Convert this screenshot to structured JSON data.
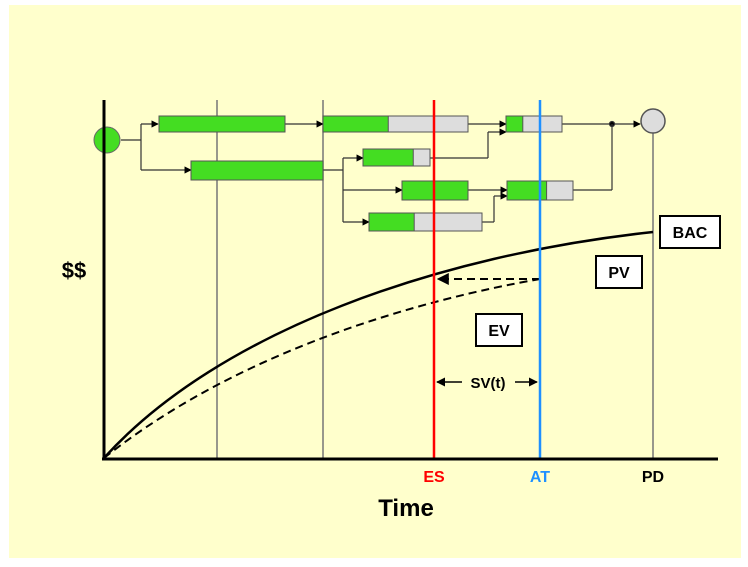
{
  "axes": {
    "y_label": "$$",
    "x_label": "Time"
  },
  "markers": {
    "es": {
      "label": "ES",
      "color": "#ff0000"
    },
    "at": {
      "label": "AT",
      "color": "#1e90ff"
    },
    "pd": {
      "label": "PD",
      "color": "#000000"
    }
  },
  "curves": {
    "bac_label": "BAC",
    "pv_label": "PV",
    "ev_label": "EV",
    "sv_label": "SV(t)"
  },
  "colors": {
    "background": "#ffffcc",
    "task_done": "#44dd22",
    "task_remaining": "#dddddd",
    "start_node": "#44dd22",
    "end_node": "#dddddd"
  },
  "tasks": [
    {
      "id": "t1",
      "progress": 1.0
    },
    {
      "id": "t2",
      "progress": 0.45
    },
    {
      "id": "t3",
      "progress": 0.3
    },
    {
      "id": "t4",
      "progress": 1.0
    },
    {
      "id": "t5",
      "progress": 0.75
    },
    {
      "id": "t6",
      "progress": 1.0
    },
    {
      "id": "t7",
      "progress": 0.6
    },
    {
      "id": "t8",
      "progress": 0.4
    }
  ]
}
